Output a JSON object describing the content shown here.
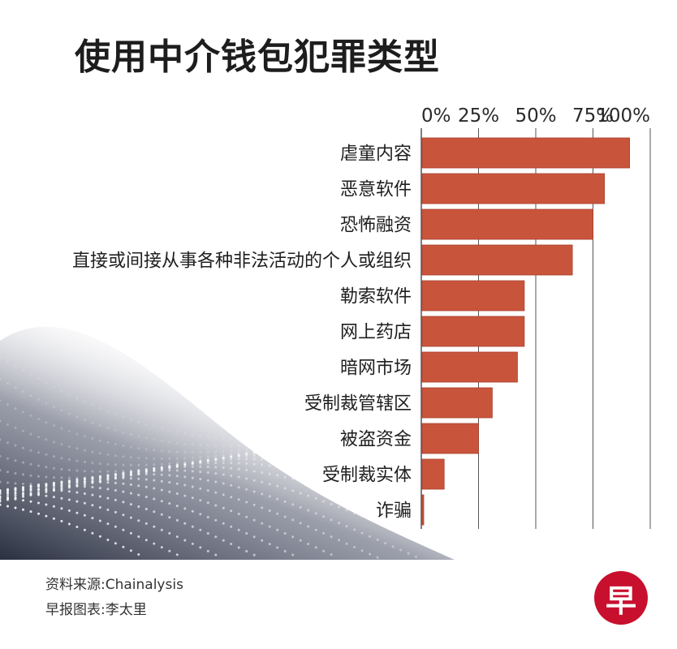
{
  "title": "使用中介钱包犯罪类型",
  "footer": {
    "source_label": "资料来源:",
    "source_value": "Chainalysis",
    "credit_label": "早报图表:",
    "credit_value": "李太里"
  },
  "logo_text": "早",
  "colors": {
    "bar": "#c9543c",
    "bar_edge": "#a8402c",
    "axis": "#555555"
  },
  "chart_data": {
    "type": "bar",
    "orientation": "horizontal",
    "title": "使用中介钱包犯罪类型",
    "xlim": [
      0,
      100
    ],
    "ticks": [
      0,
      25,
      50,
      75,
      100
    ],
    "tick_labels": [
      "0%",
      "25%",
      "50%",
      "75%",
      "100%"
    ],
    "categories": [
      "虐童内容",
      "恶意软件",
      "恐怖融资",
      "直接或间接从事各种非法活动的个人或组织",
      "勒索软件",
      "网上药店",
      "暗网市场",
      "受制裁管辖区",
      "被盗资金",
      "受制裁实体",
      "诈骗"
    ],
    "values": [
      91,
      80,
      75,
      66,
      45,
      45,
      42,
      31,
      25,
      10,
      1
    ]
  }
}
